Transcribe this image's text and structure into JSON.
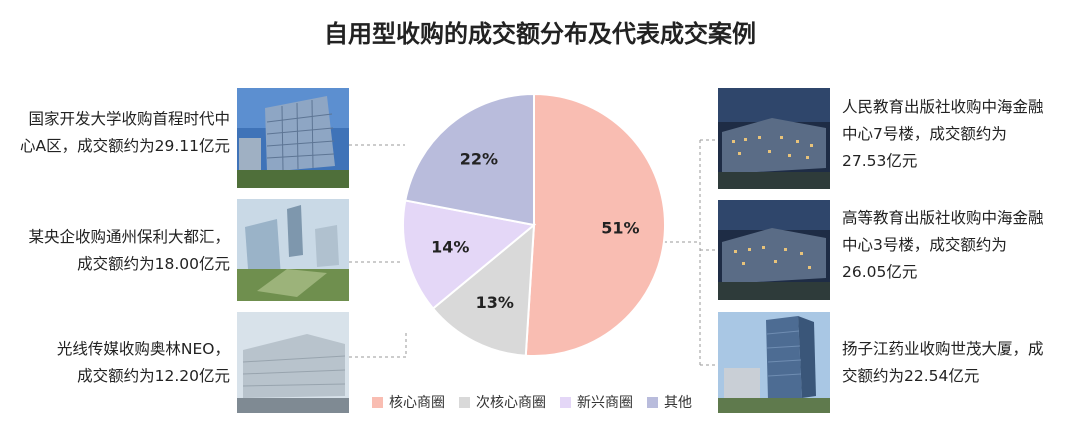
{
  "title": "自用型收购的成交额分布及代表成交案例",
  "cases_left": [
    {
      "line1": "国家开发大学收购首程时代中",
      "line2": "心A区，成交额约为29.11亿元"
    },
    {
      "line1": "某央企收购通州保利大都汇，",
      "line2": "成交额约为18.00亿元"
    },
    {
      "line1": "光线传媒收购奥林NEO，",
      "line2": "成交额约为12.20亿元"
    }
  ],
  "cases_right": [
    {
      "line1": "人民教育出版社收购中海金融",
      "line2": "中心7号楼，成交额约为",
      "line3": "27.53亿元"
    },
    {
      "line1": "高等教育出版社收购中海金融",
      "line2": "中心3号楼，成交额约为",
      "line3": "26.05亿元"
    },
    {
      "line1": "扬子江药业收购世茂大厦，成",
      "line2": "交额约为22.54亿元"
    }
  ],
  "chart_data": {
    "type": "pie",
    "title": "自用型收购的成交额分布及代表成交案例",
    "legend_position": "bottom",
    "slices": [
      {
        "name": "核心商圈",
        "value": 51,
        "label": "51%",
        "color": "#f9bdb2"
      },
      {
        "name": "次核心商圈",
        "value": 13,
        "label": "13%",
        "color": "#d9d9d9"
      },
      {
        "name": "新兴商圈",
        "value": 14,
        "label": "14%",
        "color": "#e4d7f7"
      },
      {
        "name": "其他",
        "value": 22,
        "label": "22%",
        "color": "#b9bcdc"
      }
    ]
  }
}
